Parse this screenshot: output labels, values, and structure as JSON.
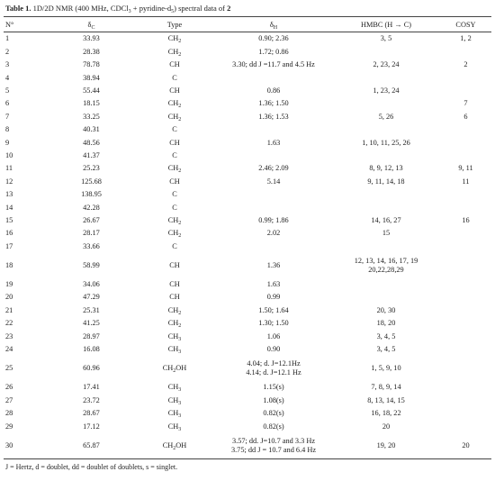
{
  "caption": {
    "label": "Table 1.",
    "text": [
      "1D/2D NMR (400 MHz, CDCl",
      "3",
      " + pyridine-d",
      "5",
      ") spectral data of ",
      "2"
    ]
  },
  "table": {
    "headers": [
      "N°",
      {
        "symbol": "δ",
        "sub": "C"
      },
      "Type",
      {
        "symbol": "δ",
        "sub": "H"
      },
      "HMBC (H → C)",
      "COSY"
    ],
    "rows": [
      {
        "no": "1",
        "c": "33.93",
        "type": "CH2",
        "h": [
          "0.90; 2.36"
        ],
        "hmbc": [
          "3, 5"
        ],
        "cosy": "1, 2"
      },
      {
        "no": "2",
        "c": "28.38",
        "type": "CH2",
        "h": [
          "1.72; 0.86"
        ]
      },
      {
        "no": "3",
        "c": "78.78",
        "type": "CH",
        "h": [
          "3.30; dd J =11.7 and 4.5 Hz"
        ],
        "hmbc": [
          "2, 23, 24"
        ],
        "cosy": "2"
      },
      {
        "no": "4",
        "c": "38.94",
        "type": "C"
      },
      {
        "no": "5",
        "c": "55.44",
        "type": "CH",
        "h": [
          "0.86"
        ],
        "hmbc": [
          "1, 23, 24"
        ]
      },
      {
        "no": "6",
        "c": "18.15",
        "type": "CH2",
        "h": [
          "1.36; 1.50"
        ],
        "cosy": "7"
      },
      {
        "no": "7",
        "c": "33.25",
        "type": "CH2",
        "h": [
          "1.36; 1.53"
        ],
        "hmbc": [
          "5, 26"
        ],
        "cosy": "6"
      },
      {
        "no": "8",
        "c": "40.31",
        "type": "C"
      },
      {
        "no": "9",
        "c": "48.56",
        "type": "CH",
        "h": [
          "1.63"
        ],
        "hmbc": [
          "1, 10, 11, 25, 26"
        ]
      },
      {
        "no": "10",
        "c": "41.37",
        "type": "C"
      },
      {
        "no": "11",
        "c": "25.23",
        "type": "CH2",
        "h": [
          "2.46; 2.09"
        ],
        "hmbc": [
          "8, 9, 12, 13"
        ],
        "cosy": "9, 11"
      },
      {
        "no": "12",
        "c": "125.68",
        "type": "CH",
        "h": [
          "5.14"
        ],
        "hmbc": [
          "9, 11, 14, 18"
        ],
        "cosy": "11"
      },
      {
        "no": "13",
        "c": "138.95",
        "type": "C"
      },
      {
        "no": "14",
        "c": "42.28",
        "type": "C"
      },
      {
        "no": "15",
        "c": "26.67",
        "type": "CH2",
        "h": [
          "0.99; 1.86"
        ],
        "hmbc": [
          "14, 16, 27"
        ],
        "cosy": "16"
      },
      {
        "no": "16",
        "c": "28.17",
        "type": "CH2",
        "h": [
          "2.02"
        ],
        "hmbc": [
          "15"
        ]
      },
      {
        "no": "17",
        "c": "33.66",
        "type": "C"
      },
      {
        "no": "18",
        "c": "58.99",
        "type": "CH",
        "h": [
          "1.36"
        ],
        "hmbc": [
          "12, 13, 14, 16, 17, 19",
          "20,22,28,29"
        ]
      },
      {
        "no": "19",
        "c": "34.06",
        "type": "CH",
        "h": [
          "1.63"
        ]
      },
      {
        "no": "20",
        "c": "47.29",
        "type": "CH",
        "h": [
          "0.99"
        ]
      },
      {
        "no": "21",
        "c": "25.31",
        "type": "CH2",
        "h": [
          "1.50; 1.64"
        ],
        "hmbc": [
          "20, 30"
        ]
      },
      {
        "no": "22",
        "c": "41.25",
        "type": "CH2",
        "h": [
          "1.30; 1.50"
        ],
        "hmbc": [
          "18, 20"
        ]
      },
      {
        "no": "23",
        "c": "28.97",
        "type": "CH3",
        "h": [
          "1.06"
        ],
        "hmbc": [
          "3, 4, 5"
        ]
      },
      {
        "no": "24",
        "c": "16.08",
        "type": "CH3",
        "h": [
          "0.90"
        ],
        "hmbc": [
          "3, 4, 5"
        ]
      },
      {
        "no": "25",
        "c": "60.96",
        "type": "CH2OH",
        "h": [
          "4.04; d. J=12.1Hz",
          "4.14; d. J=12.1 Hz"
        ],
        "hmbc": [
          "1, 5, 9, 10"
        ]
      },
      {
        "no": "26",
        "c": "17.41",
        "type": "CH3",
        "h": [
          "1.15(s)"
        ],
        "hmbc": [
          "7, 8, 9, 14"
        ]
      },
      {
        "no": "27",
        "c": "23.72",
        "type": "CH3",
        "h": [
          "1.08(s)"
        ],
        "hmbc": [
          "8, 13, 14, 15"
        ]
      },
      {
        "no": "28",
        "c": "28.67",
        "type": "CH3",
        "h": [
          "0.82(s)"
        ],
        "hmbc": [
          "16, 18, 22"
        ]
      },
      {
        "no": "29",
        "c": "17.12",
        "type": "CH3",
        "h": [
          "0.82(s)"
        ],
        "hmbc": [
          "20"
        ]
      },
      {
        "no": "30",
        "c": "65.87",
        "type": "CH2OH",
        "h": [
          "3.57; dd. J=10.7 and 3.3 Hz",
          "3.75; dd J = 10.7 and 6.4 Hz"
        ],
        "hmbc": [
          "19, 20"
        ],
        "cosy": "20"
      }
    ]
  },
  "footnote": "J = Hertz, d = doublet, dd = doublet of doublets, s = singlet."
}
